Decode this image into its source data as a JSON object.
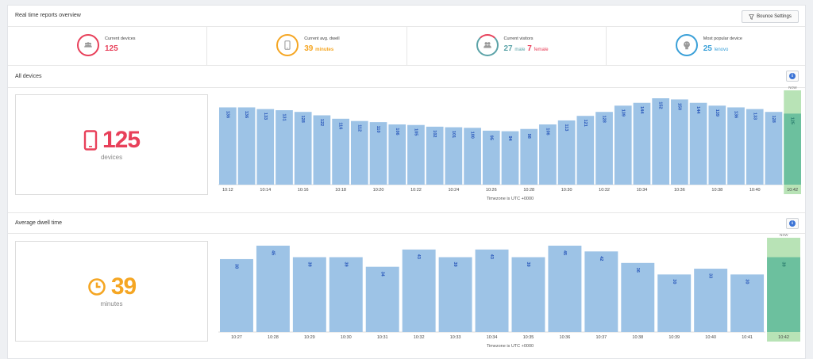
{
  "header": {
    "title": "Real time reports overview",
    "bounce_button": "Bounce Settings"
  },
  "colors": {
    "red": "#e8405a",
    "orange": "#f5a623",
    "teal": "#5ba3a8",
    "blue": "#3aa0d8",
    "bar": "#9dc3e6",
    "bar_label": "#2453b8",
    "now_bg": "#b8e3b6",
    "now_bar": "#6cc09e"
  },
  "stats": [
    {
      "label": "Current devices",
      "value": "125",
      "icon": "devices-icon"
    },
    {
      "label": "Current avg. dwell",
      "value": "39",
      "unit": "minutes",
      "icon": "phone-icon"
    },
    {
      "label": "Current visitors",
      "male": "27",
      "male_label": "male",
      "female": "7",
      "female_label": "female",
      "icon": "visitors-icon"
    },
    {
      "label": "Most popular device",
      "value": "25",
      "unit": "lenovo",
      "icon": "android-icon"
    }
  ],
  "all_devices": {
    "title": "All devices",
    "kpi_value": "125",
    "kpi_unit": "devices",
    "timezone": "Timezone is UTC +0000",
    "chart_data": {
      "type": "bar",
      "values": [
        136,
        136,
        133,
        131,
        128,
        122,
        116,
        112,
        110,
        106,
        105,
        102,
        101,
        100,
        95,
        94,
        98,
        106,
        113,
        121,
        128,
        139,
        144,
        152,
        150,
        144,
        139,
        136,
        133,
        128,
        125
      ],
      "x_tick_labels": [
        "10:12",
        "10:14",
        "10:16",
        "10:18",
        "10:20",
        "10:22",
        "10:24",
        "10:26",
        "10:28",
        "10:30",
        "10:32",
        "10:34",
        "10:36",
        "10:38",
        "10:40",
        "10:42"
      ],
      "now_label": "Now"
    }
  },
  "avg_dwell": {
    "title": "Average dwell time",
    "kpi_value": "39",
    "kpi_unit": "minutes",
    "timezone": "Timezone is UTC +0000",
    "chart_data": {
      "type": "bar",
      "values": [
        38,
        45,
        39,
        39,
        34,
        43,
        39,
        43,
        39,
        45,
        42,
        36,
        30,
        33,
        30,
        39
      ],
      "x_tick_labels": [
        "10:27",
        "10:28",
        "10:29",
        "10:30",
        "10:31",
        "10:32",
        "10:33",
        "10:34",
        "10:35",
        "10:36",
        "10:37",
        "10:38",
        "10:39",
        "10:40",
        "10:41",
        "10:42"
      ],
      "now_label": "Now"
    }
  }
}
